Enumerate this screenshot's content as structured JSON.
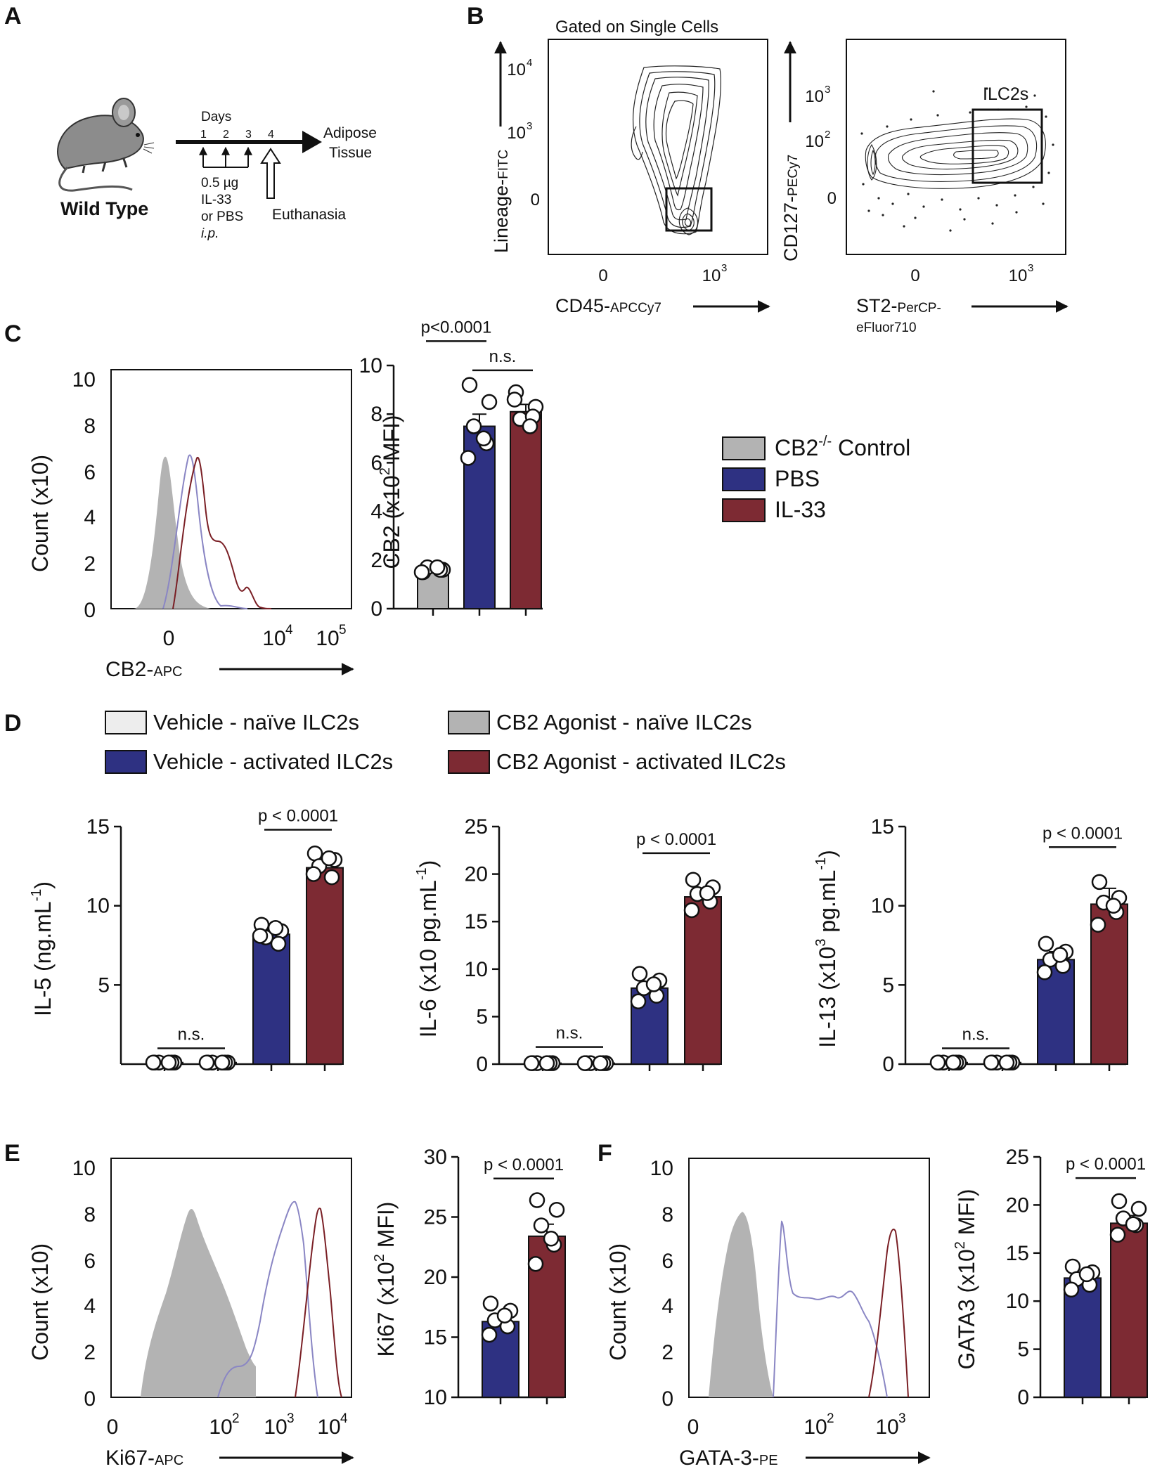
{
  "figure": {
    "panel_labels": [
      "A",
      "B",
      "C",
      "D",
      "E",
      "F"
    ]
  },
  "colors": {
    "control": "#b3b3b3",
    "pbs": "#2e3182",
    "il33": "#7d2a33",
    "vehicle_naive": "#ededed",
    "pbs_line": "#8a86c4",
    "il33_line": "#7a1f25",
    "black": "#111111",
    "white": "#ffffff"
  },
  "panel_a": {
    "mouse_label": "Wild Type",
    "days_label": "Days",
    "day_ticks": [
      "1",
      "2",
      "3",
      "4"
    ],
    "dose": "0.5 µg",
    "drug": "IL-33",
    "alt": "or PBS",
    "route": "i.p.",
    "target1": "Adipose",
    "target2": "Tissue",
    "endpoint": "Euthanasia"
  },
  "panel_b": {
    "gate_title": "Gated on Single Cells",
    "plot1": {
      "ylabel_main": "Lineage-",
      "ylabel_sub": "FITC",
      "xlabel_main": "CD45-",
      "xlabel_sub": "APCCy7",
      "yticks": [
        {
          "b": "10",
          "e": "4"
        },
        {
          "b": "10",
          "e": "3"
        },
        {
          "b": "0",
          "e": ""
        }
      ],
      "xticks": [
        {
          "b": "0",
          "e": ""
        },
        {
          "b": "10",
          "e": "3"
        }
      ]
    },
    "plot2": {
      "ylabel_main": "CD127-",
      "ylabel_sub": "PECy7",
      "xlabel_main": "ST2-",
      "xlabel_sub": "PerCP-",
      "xlabel_sub2": "eFluor710",
      "gate_label": "ILC2s",
      "yticks": [
        {
          "b": "10",
          "e": "3"
        },
        {
          "b": "10",
          "e": "2"
        },
        {
          "b": "0",
          "e": ""
        }
      ],
      "xticks": [
        {
          "b": "0",
          "e": ""
        },
        {
          "b": "10",
          "e": "3"
        }
      ]
    }
  },
  "panel_c": {
    "hist": {
      "ylabel": "Count (x10)",
      "xlabel_main": "CB2-",
      "xlabel_sub": "APC",
      "yticks": [
        "10",
        "8",
        "6",
        "4",
        "2",
        "0"
      ],
      "xticks": [
        {
          "b": "0",
          "e": ""
        },
        {
          "b": "10",
          "e": "4"
        },
        {
          "b": "10",
          "e": "5"
        }
      ]
    },
    "legend": [
      {
        "main": "CB2",
        "sup": "-/-",
        "rest": " Control",
        "key": "control"
      },
      {
        "main": "PBS",
        "sup": "",
        "rest": "",
        "key": "pbs"
      },
      {
        "main": "IL-33",
        "sup": "",
        "rest": "",
        "key": "il33"
      }
    ]
  },
  "panel_d": {
    "legend": [
      {
        "label": "Vehicle - naïve ILC2s",
        "key": "vehicle_naive"
      },
      {
        "label": "CB2 Agonist - naïve ILC2s",
        "key": "control"
      },
      {
        "label": "Vehicle - activated ILC2s",
        "key": "pbs"
      },
      {
        "label": "CB2 Agonist - activated ILC2s",
        "key": "il33"
      }
    ]
  },
  "panel_e": {
    "hist": {
      "ylabel": "Count (x10)",
      "xlabel_main": "Ki67-",
      "xlabel_sub": "APC",
      "yticks": [
        "10",
        "8",
        "6",
        "4",
        "2",
        "0"
      ],
      "xticks": [
        {
          "b": "0",
          "e": ""
        },
        {
          "b": "10",
          "e": "2"
        },
        {
          "b": "10",
          "e": "3"
        },
        {
          "b": "10",
          "e": "4"
        }
      ]
    }
  },
  "panel_f": {
    "hist": {
      "ylabel": "Count (x10)",
      "xlabel_main": "GATA-3-",
      "xlabel_sub": "PE",
      "yticks": [
        "10",
        "8",
        "6",
        "4",
        "2",
        "0"
      ],
      "xticks": [
        {
          "b": "0",
          "e": ""
        },
        {
          "b": "10",
          "e": "2"
        },
        {
          "b": "10",
          "e": "3"
        }
      ]
    }
  },
  "chart_data": [
    {
      "id": "C-bar",
      "type": "bar",
      "title": "",
      "ylabel_pre": "CB2 (x10",
      "ylabel_sup": "2",
      "ylabel_post": " MFI)",
      "ylim": [
        0,
        10
      ],
      "yticks": [
        0,
        2,
        4,
        6,
        8,
        10
      ],
      "categories": [
        "CB2-/- Control",
        "PBS",
        "IL-33"
      ],
      "values": [
        1.6,
        7.5,
        8.1
      ],
      "errors": [
        0.1,
        0.5,
        0.3
      ],
      "points": [
        [
          1.5,
          1.6,
          1.7,
          1.6,
          1.5,
          1.7
        ],
        [
          9.2,
          8.5,
          7.5,
          6.8,
          6.2,
          7.0
        ],
        [
          8.9,
          8.3,
          7.8,
          7.9,
          8.6,
          7.5
        ]
      ],
      "color_keys": [
        "control",
        "pbs",
        "il33"
      ],
      "comparisons": [
        {
          "from": 0,
          "to": 1,
          "label": "p<0.0001",
          "y": 11.0
        },
        {
          "from": 1,
          "to": 2,
          "label": "n.s.",
          "y": 9.8
        }
      ]
    },
    {
      "id": "D-IL5",
      "type": "bar",
      "title": "",
      "ylabel_pre": "IL-5 (ng.mL",
      "ylabel_sup": "-1",
      "ylabel_post": ")",
      "ylim": [
        0,
        15
      ],
      "yticks": [
        5,
        10,
        15
      ],
      "categories": [
        "Vehicle - naïve ILC2s",
        "CB2 Agonist - naïve ILC2s",
        "Vehicle - activated ILC2s",
        "CB2 Agonist - activated ILC2s"
      ],
      "values": [
        0.1,
        0.1,
        8.2,
        12.4
      ],
      "errors": [
        0.05,
        0.05,
        0.3,
        0.5
      ],
      "points": [
        [
          0.1,
          0.1,
          0.1,
          0.1,
          0.1,
          0.1
        ],
        [
          0.1,
          0.1,
          0.1,
          0.1,
          0.1,
          0.1
        ],
        [
          8.8,
          8.4,
          8.0,
          7.6,
          8.1,
          8.6
        ],
        [
          13.3,
          12.9,
          12.5,
          11.8,
          12.0,
          13.0
        ]
      ],
      "color_keys": [
        "vehicle_naive",
        "control",
        "pbs",
        "il33"
      ],
      "comparisons": [
        {
          "from": 0,
          "to": 1,
          "label": "n.s.",
          "y": 1.0
        },
        {
          "from": 2,
          "to": 3,
          "label": "p < 0.0001",
          "y": 14.8
        }
      ]
    },
    {
      "id": "D-IL6",
      "type": "bar",
      "title": "",
      "ylabel_pre": "IL-6 (x10 pg.mL",
      "ylabel_sup": "-1",
      "ylabel_post": ")",
      "ylim": [
        0,
        25
      ],
      "yticks": [
        0,
        5,
        10,
        15,
        20,
        25
      ],
      "categories": [
        "Vehicle - naïve ILC2s",
        "CB2 Agonist - naïve ILC2s",
        "Vehicle - activated ILC2s",
        "CB2 Agonist - activated ILC2s"
      ],
      "values": [
        0.1,
        0.1,
        8.0,
        17.6
      ],
      "errors": [
        0.05,
        0.05,
        0.6,
        0.7
      ],
      "points": [
        [
          0.1,
          0.1,
          0.1,
          0.1,
          0.1,
          0.1
        ],
        [
          0.1,
          0.1,
          0.1,
          0.1,
          0.1,
          0.1
        ],
        [
          9.5,
          8.8,
          8.0,
          7.2,
          6.6,
          8.4
        ],
        [
          19.4,
          18.6,
          17.9,
          17.1,
          16.2,
          18.0
        ]
      ],
      "color_keys": [
        "vehicle_naive",
        "control",
        "pbs",
        "il33"
      ],
      "comparisons": [
        {
          "from": 0,
          "to": 1,
          "label": "n.s.",
          "y": 1.8
        },
        {
          "from": 2,
          "to": 3,
          "label": "p < 0.0001",
          "y": 22.2
        }
      ]
    },
    {
      "id": "D-IL13",
      "type": "bar",
      "title": "",
      "ylabel_pre": "IL-13 (x10",
      "ylabel_sup": "3",
      "ylabel_post": " pg.mL",
      "ylabel_sup2": "-1",
      "ylabel_post2": ")",
      "ylim": [
        0,
        15
      ],
      "yticks": [
        0,
        5,
        10,
        15
      ],
      "categories": [
        "Vehicle - naïve ILC2s",
        "CB2 Agonist - naïve ILC2s",
        "Vehicle - activated ILC2s",
        "CB2 Agonist - activated ILC2s"
      ],
      "values": [
        0.1,
        0.1,
        6.6,
        10.1
      ],
      "errors": [
        0.05,
        0.05,
        0.5,
        1.0
      ],
      "points": [
        [
          0.1,
          0.1,
          0.1,
          0.1,
          0.1,
          0.1
        ],
        [
          0.1,
          0.1,
          0.1,
          0.1,
          0.1,
          0.1
        ],
        [
          7.6,
          7.1,
          6.6,
          6.2,
          5.8,
          6.9
        ],
        [
          11.5,
          10.5,
          10.2,
          9.6,
          8.8,
          10.0
        ]
      ],
      "color_keys": [
        "vehicle_naive",
        "control",
        "pbs",
        "il33"
      ],
      "comparisons": [
        {
          "from": 0,
          "to": 1,
          "label": "n.s.",
          "y": 1.0
        },
        {
          "from": 2,
          "to": 3,
          "label": "p < 0.0001",
          "y": 13.7
        }
      ]
    },
    {
      "id": "E-Ki67",
      "type": "bar",
      "title": "",
      "ylabel_pre": "Ki67 (x10",
      "ylabel_sup": "2",
      "ylabel_post": " MFI)",
      "ylim": [
        10,
        30
      ],
      "yticks": [
        10,
        15,
        20,
        25,
        30
      ],
      "categories": [
        "PBS",
        "IL-33"
      ],
      "values": [
        16.3,
        23.4
      ],
      "errors": [
        0.6,
        1.0
      ],
      "points": [
        [
          17.8,
          17.2,
          16.4,
          15.9,
          15.2,
          16.8
        ],
        [
          26.4,
          25.6,
          24.3,
          22.7,
          21.1,
          23.2
        ]
      ],
      "color_keys": [
        "pbs",
        "il33"
      ],
      "comparisons": [
        {
          "from": 0,
          "to": 1,
          "label": "p < 0.0001",
          "y": 28.2
        }
      ]
    },
    {
      "id": "F-GATA3",
      "type": "bar",
      "title": "",
      "ylabel_pre": "GATA3 (x10",
      "ylabel_sup": "2",
      "ylabel_post": " MFI)",
      "ylim": [
        0,
        25
      ],
      "yticks": [
        0,
        5,
        10,
        15,
        20,
        25
      ],
      "categories": [
        "PBS",
        "IL-33"
      ],
      "values": [
        12.4,
        18.1
      ],
      "errors": [
        0.6,
        0.8
      ],
      "points": [
        [
          13.6,
          13.0,
          12.3,
          11.7,
          11.2,
          12.8
        ],
        [
          20.4,
          19.6,
          18.6,
          17.9,
          16.9,
          18.0
        ]
      ],
      "color_keys": [
        "pbs",
        "il33"
      ],
      "comparisons": [
        {
          "from": 0,
          "to": 1,
          "label": "p < 0.0001",
          "y": 22.8
        }
      ]
    }
  ]
}
